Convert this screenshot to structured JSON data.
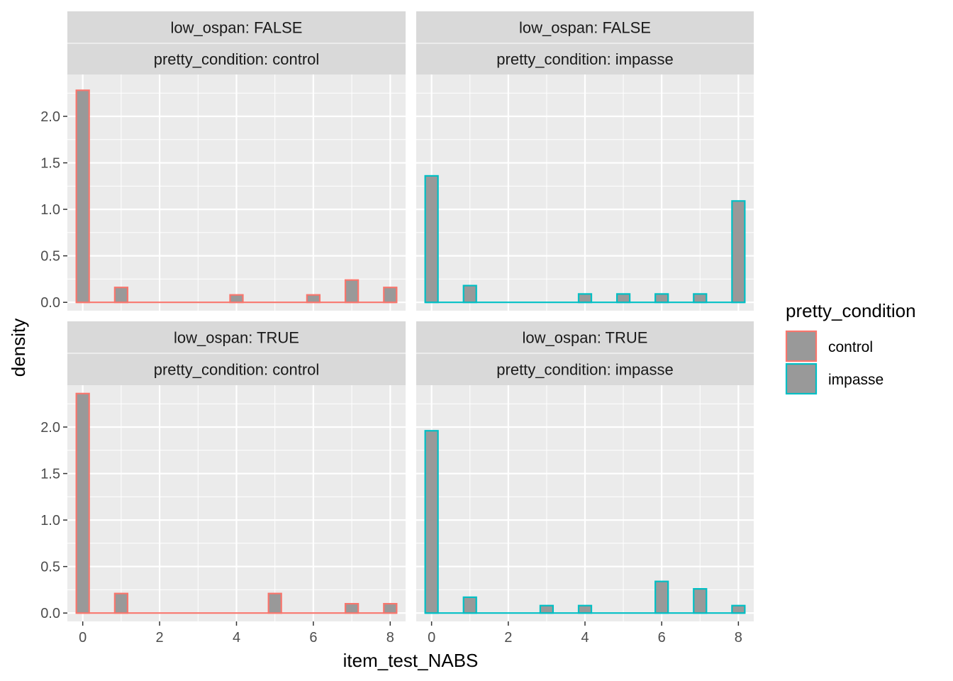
{
  "chart_data": {
    "type": "bar",
    "subtype": "faceted-histogram",
    "xlabel": "item_test_NABS",
    "ylabel": "density",
    "xlim": [
      -0.4,
      8.4
    ],
    "ylim": [
      -0.09,
      2.45
    ],
    "x_ticks": [
      0,
      2,
      4,
      6,
      8
    ],
    "y_ticks": [
      0.0,
      0.5,
      1.0,
      1.5,
      2.0
    ],
    "y_tick_labels": [
      "0.0",
      "0.5",
      "1.0",
      "1.5",
      "2.0"
    ],
    "bin_width": 0.3333,
    "bins_x": [
      0,
      0.3333,
      0.6667,
      1,
      1.3333,
      1.6667,
      2,
      2.3333,
      2.6667,
      3,
      3.3333,
      3.6667,
      4,
      4.3333,
      4.6667,
      5,
      5.3333,
      5.6667,
      6,
      6.3333,
      6.6667,
      7,
      7.3333,
      7.6667,
      8
    ],
    "legend": {
      "title": "pretty_condition",
      "position": "right",
      "entries": [
        {
          "label": "control",
          "color": "#F8766D"
        },
        {
          "label": "impasse",
          "color": "#00BFC4"
        }
      ]
    },
    "fill_color": "#999999",
    "panel_bg": "#EBEBEB",
    "strip_bg": "#D9D9D9",
    "grid": true,
    "facets": [
      {
        "row_label": "low_ospan: FALSE",
        "col_label": "pretty_condition: control",
        "color": "#F8766D",
        "show_y_axis": true,
        "show_x_axis": false,
        "values": [
          2.28,
          0,
          0,
          0.16,
          0,
          0,
          0,
          0,
          0,
          0,
          0,
          0,
          0.08,
          0,
          0,
          0,
          0,
          0,
          0.08,
          0,
          0,
          0.24,
          0,
          0,
          0.16
        ]
      },
      {
        "row_label": "low_ospan: FALSE",
        "col_label": "pretty_condition: impasse",
        "color": "#00BFC4",
        "show_y_axis": false,
        "show_x_axis": false,
        "values": [
          1.36,
          0,
          0,
          0.18,
          0,
          0,
          0,
          0,
          0,
          0,
          0,
          0,
          0.09,
          0,
          0,
          0.09,
          0,
          0,
          0.09,
          0,
          0,
          0.09,
          0,
          0,
          1.09
        ]
      },
      {
        "row_label": "low_ospan: TRUE",
        "col_label": "pretty_condition: control",
        "color": "#F8766D",
        "show_y_axis": true,
        "show_x_axis": true,
        "values": [
          2.36,
          0,
          0,
          0.21,
          0,
          0,
          0,
          0,
          0,
          0,
          0,
          0,
          0,
          0,
          0,
          0.21,
          0,
          0,
          0,
          0,
          0,
          0.1,
          0,
          0,
          0.1
        ]
      },
      {
        "row_label": "low_ospan: TRUE",
        "col_label": "pretty_condition: impasse",
        "color": "#00BFC4",
        "show_y_axis": false,
        "show_x_axis": true,
        "values": [
          1.96,
          0,
          0,
          0.17,
          0,
          0,
          0,
          0,
          0,
          0.08,
          0,
          0,
          0.08,
          0,
          0,
          0,
          0,
          0,
          0.34,
          0,
          0,
          0.26,
          0,
          0,
          0.08
        ]
      }
    ]
  }
}
